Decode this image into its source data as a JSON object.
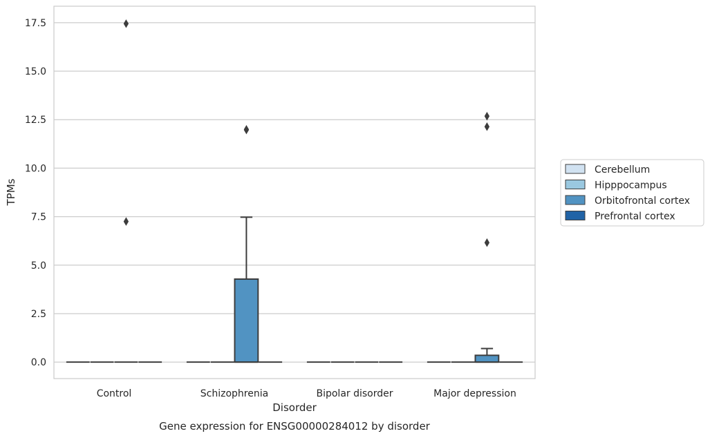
{
  "chart_data": {
    "type": "box",
    "caption": "Gene expression for ENSG00000284012 by disorder",
    "xlabel": "Disorder",
    "ylabel": "TPMs",
    "categories": [
      "Control",
      "Schizophrenia",
      "Bipolar disorder",
      "Major depression"
    ],
    "y_ticks": [
      "0.0",
      "2.5",
      "5.0",
      "7.5",
      "10.0",
      "12.5",
      "15.0",
      "17.5"
    ],
    "y_tick_values": [
      0,
      2.5,
      5,
      7.5,
      10,
      12.5,
      15,
      17.5
    ],
    "ylim": [
      -0.85,
      18.35
    ],
    "grid": true,
    "legend_position": "outside-right",
    "series": [
      {
        "name": "Cerebellum",
        "color": "#d1e2f1",
        "boxes": [
          {
            "q1": 0,
            "median": 0,
            "q3": 0,
            "whisker_low": 0,
            "whisker_high": 0,
            "outliers": []
          },
          {
            "q1": 0,
            "median": 0,
            "q3": 0,
            "whisker_low": 0,
            "whisker_high": 0,
            "outliers": []
          },
          {
            "q1": 0,
            "median": 0,
            "q3": 0,
            "whisker_low": 0,
            "whisker_high": 0,
            "outliers": []
          },
          {
            "q1": 0,
            "median": 0,
            "q3": 0,
            "whisker_low": 0,
            "whisker_high": 0,
            "outliers": []
          }
        ]
      },
      {
        "name": "Hipppocampus",
        "color": "#9ac8e0",
        "boxes": [
          {
            "q1": 0,
            "median": 0,
            "q3": 0,
            "whisker_low": 0,
            "whisker_high": 0,
            "outliers": []
          },
          {
            "q1": 0,
            "median": 0,
            "q3": 0,
            "whisker_low": 0,
            "whisker_high": 0,
            "outliers": []
          },
          {
            "q1": 0,
            "median": 0,
            "q3": 0,
            "whisker_low": 0,
            "whisker_high": 0,
            "outliers": []
          },
          {
            "q1": 0,
            "median": 0,
            "q3": 0,
            "whisker_low": 0,
            "whisker_high": 0,
            "outliers": []
          }
        ]
      },
      {
        "name": "Orbitofrontal cortex",
        "color": "#5193c2",
        "boxes": [
          {
            "q1": 0,
            "median": 0,
            "q3": 0,
            "whisker_low": 0,
            "whisker_high": 0,
            "outliers": [
              17.45,
              7.25
            ]
          },
          {
            "q1": 0,
            "median": 0,
            "q3": 4.28,
            "whisker_low": 0,
            "whisker_high": 7.47,
            "outliers": [
              11.97,
              12.0
            ]
          },
          {
            "q1": 0,
            "median": 0,
            "q3": 0,
            "whisker_low": 0,
            "whisker_high": 0,
            "outliers": []
          },
          {
            "q1": 0,
            "median": 0,
            "q3": 0.35,
            "whisker_low": 0,
            "whisker_high": 0.7,
            "outliers": [
              12.68,
              12.14,
              6.16
            ]
          }
        ]
      },
      {
        "name": "Prefrontal cortex",
        "color": "#2163a6",
        "boxes": [
          {
            "q1": 0,
            "median": 0,
            "q3": 0,
            "whisker_low": 0,
            "whisker_high": 0,
            "outliers": []
          },
          {
            "q1": 0,
            "median": 0,
            "q3": 0,
            "whisker_low": 0,
            "whisker_high": 0,
            "outliers": []
          },
          {
            "q1": 0,
            "median": 0,
            "q3": 0,
            "whisker_low": 0,
            "whisker_high": 0,
            "outliers": []
          },
          {
            "q1": 0,
            "median": 0,
            "q3": 0,
            "whisker_low": 0,
            "whisker_high": 0,
            "outliers": []
          }
        ]
      }
    ]
  }
}
